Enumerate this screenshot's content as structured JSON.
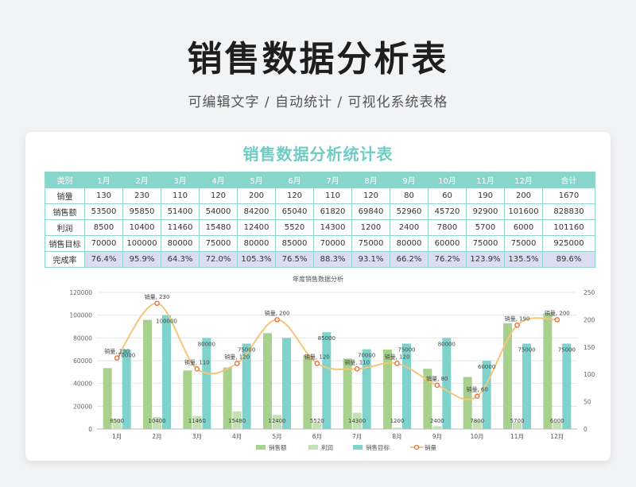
{
  "hero": {
    "title": "销售数据分析表",
    "subtitle": "可编辑文字 / 自动统计 / 可视化系统表格"
  },
  "card": {
    "title": "销售数据分析统计表"
  },
  "table": {
    "headers": [
      "类别",
      "1月",
      "2月",
      "3月",
      "4月",
      "5月",
      "6月",
      "7月",
      "8月",
      "9月",
      "10月",
      "11月",
      "12月",
      "合计"
    ],
    "rows": [
      {
        "label": "销量",
        "cells": [
          "130",
          "230",
          "110",
          "120",
          "200",
          "120",
          "110",
          "120",
          "80",
          "60",
          "190",
          "200",
          "1670"
        ]
      },
      {
        "label": "销售额",
        "cells": [
          "53500",
          "95850",
          "51400",
          "54000",
          "84200",
          "65040",
          "61820",
          "69840",
          "52960",
          "45720",
          "92900",
          "101600",
          "828830"
        ]
      },
      {
        "label": "利润",
        "cells": [
          "8500",
          "10400",
          "11460",
          "15480",
          "12400",
          "5520",
          "14300",
          "1200",
          "2400",
          "7800",
          "5700",
          "6000",
          "101160"
        ]
      },
      {
        "label": "销售目标",
        "cells": [
          "70000",
          "100000",
          "80000",
          "75000",
          "80000",
          "85000",
          "70000",
          "75000",
          "80000",
          "60000",
          "75000",
          "75000",
          "925000"
        ]
      },
      {
        "label": "完成率",
        "cells": [
          "76.4%",
          "95.9%",
          "64.3%",
          "72.0%",
          "105.3%",
          "76.5%",
          "88.3%",
          "93.1%",
          "66.2%",
          "76.2%",
          "123.9%",
          "135.5%",
          "89.6%"
        ]
      }
    ]
  },
  "chart_data": {
    "type": "bar",
    "title": "年度销售数据分析",
    "categories": [
      "1月",
      "2月",
      "3月",
      "4月",
      "5月",
      "6月",
      "7月",
      "8月",
      "9月",
      "10月",
      "11月",
      "12月"
    ],
    "series": [
      {
        "name": "销售额",
        "kind": "bar",
        "axis": "left",
        "color": "#a9d18e",
        "values": [
          53500,
          95850,
          51400,
          54000,
          84200,
          65040,
          61820,
          69840,
          52960,
          45720,
          92900,
          101600
        ]
      },
      {
        "name": "利润",
        "kind": "bar",
        "axis": "left",
        "color": "#c5e0b4",
        "values": [
          8500,
          10400,
          11460,
          15480,
          12400,
          5520,
          14300,
          1200,
          2400,
          7800,
          5700,
          6000
        ]
      },
      {
        "name": "销售目标",
        "kind": "bar",
        "axis": "left",
        "color": "#7fd3cc",
        "values": [
          70000,
          100000,
          80000,
          75000,
          80000,
          85000,
          70000,
          75000,
          80000,
          60000,
          75000,
          75000
        ]
      },
      {
        "name": "销量",
        "kind": "line",
        "axis": "right",
        "color": "#f5c57a",
        "marker_color": "#e8703a",
        "values": [
          130,
          230,
          110,
          120,
          200,
          120,
          110,
          120,
          80,
          60,
          190,
          200
        ]
      }
    ],
    "y_left": {
      "min": 0,
      "max": 120000,
      "ticks": [
        0,
        20000,
        40000,
        60000,
        80000,
        100000,
        120000
      ]
    },
    "y_right": {
      "min": 0,
      "max": 250,
      "ticks": [
        0,
        50,
        100,
        150,
        200,
        250
      ]
    },
    "point_labels": [
      "销量, 130",
      "销量, 230",
      "销量, 110",
      "销量, 120",
      "销量, 200",
      "销量, 120",
      "销量, 110",
      "销量, 120",
      "销量, 80",
      "销量, 60",
      "销量, 190",
      "销量, 200"
    ],
    "target_labels": [
      "70000",
      "100000",
      "80000",
      "75000",
      "85000",
      "70000",
      "75000",
      "80000",
      "60000",
      "75000",
      "75000"
    ],
    "target_label_months": [
      0,
      1,
      2,
      3,
      5,
      6,
      7,
      8,
      9,
      10,
      11
    ],
    "profit_labels": [
      "8500",
      "10400",
      "11460",
      "15480",
      "12400",
      "5520",
      "14300",
      "1200",
      "2400",
      "7800",
      "5700",
      "6000"
    ],
    "legend": {
      "position": "bottom",
      "items": [
        "销售额",
        "利润",
        "销售目标",
        "销量"
      ]
    },
    "grid": true
  }
}
